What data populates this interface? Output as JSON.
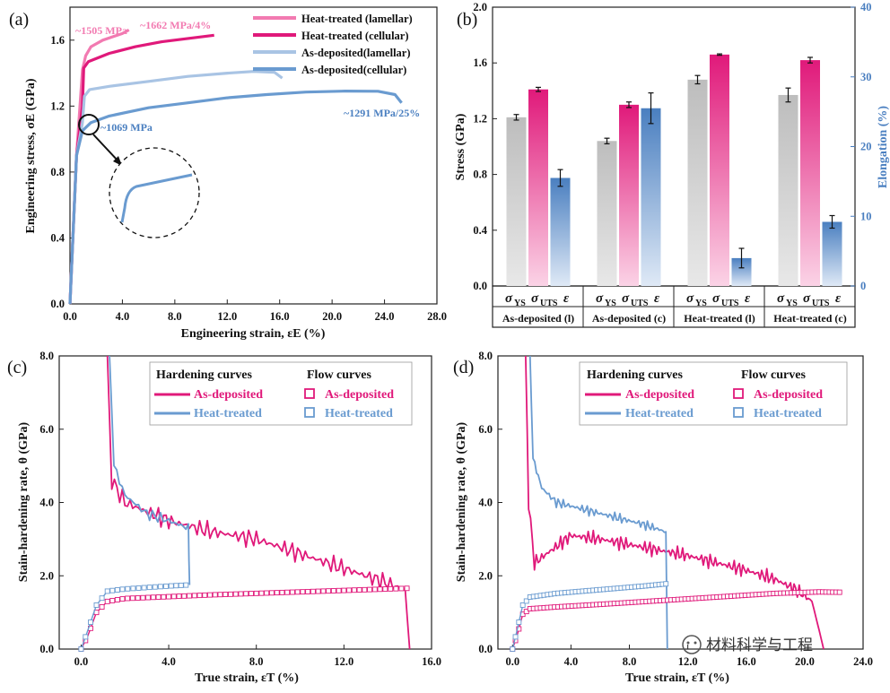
{
  "chart_data": [
    {
      "panel": "(a)",
      "type": "line",
      "xlabel": "Engineering strain, εE (%)",
      "ylabel": "Engineering stress, σE (GPa)",
      "xlim": [
        0,
        28
      ],
      "ylim": [
        0,
        1.8
      ],
      "xticks": [
        "0.0",
        "4.0",
        "8.0",
        "12.0",
        "16.0",
        "20.0",
        "24.0",
        "28.0"
      ],
      "yticks": [
        "0.0",
        "0.4",
        "0.8",
        "1.2",
        "1.6"
      ],
      "legend_position": "top-right",
      "series": [
        {
          "name": "Heat-treated (lamellar)",
          "color": "#f27ab1",
          "points": [
            [
              0,
              0
            ],
            [
              0.5,
              0.9
            ],
            [
              0.95,
              1.42
            ],
            [
              1.2,
              1.505
            ],
            [
              1.6,
              1.56
            ],
            [
              2.5,
              1.6
            ],
            [
              4.0,
              1.64
            ],
            [
              4.5,
              1.662
            ]
          ]
        },
        {
          "name": "Heat-treated (cellular)",
          "color": "#e0197a",
          "points": [
            [
              0,
              0
            ],
            [
              0.5,
              0.9
            ],
            [
              0.95,
              1.2
            ],
            [
              1.05,
              1.43
            ],
            [
              1.4,
              1.47
            ],
            [
              3,
              1.52
            ],
            [
              5,
              1.56
            ],
            [
              7,
              1.59
            ],
            [
              9,
              1.61
            ],
            [
              11,
              1.63
            ]
          ]
        },
        {
          "name": "As-deposited(lamellar)",
          "color": "#a9c4e4",
          "points": [
            [
              0,
              0
            ],
            [
              0.5,
              0.9
            ],
            [
              0.95,
              1.1
            ],
            [
              1.1,
              1.26
            ],
            [
              1.5,
              1.3
            ],
            [
              3,
              1.32
            ],
            [
              6,
              1.35
            ],
            [
              9,
              1.38
            ],
            [
              12,
              1.4
            ],
            [
              14,
              1.41
            ],
            [
              15.6,
              1.405
            ],
            [
              16.2,
              1.37
            ]
          ]
        },
        {
          "name": "As-deposited(cellular)",
          "color": "#6a9bd0",
          "points": [
            [
              0,
              0
            ],
            [
              0.5,
              0.9
            ],
            [
              0.95,
              1.05
            ],
            [
              1.2,
              1.069
            ],
            [
              1.6,
              1.1
            ],
            [
              3,
              1.14
            ],
            [
              6,
              1.19
            ],
            [
              9,
              1.22
            ],
            [
              12,
              1.25
            ],
            [
              15,
              1.27
            ],
            [
              18,
              1.285
            ],
            [
              21,
              1.291
            ],
            [
              23.5,
              1.29
            ],
            [
              24.8,
              1.27
            ],
            [
              25.3,
              1.22
            ]
          ]
        }
      ],
      "annotations": [
        "~1505 MPa",
        "~1662 MPa/4%",
        "~1069 MPa",
        "~1291 MPa/25%"
      ]
    },
    {
      "panel": "(b)",
      "type": "bar",
      "ylabel": "Stress (GPa)",
      "y2label": "Elongation (%)",
      "ylim": [
        0,
        2.0
      ],
      "y2lim": [
        0,
        40
      ],
      "yticks": [
        "0.0",
        "0.4",
        "0.8",
        "1.2",
        "1.6",
        "2.0"
      ],
      "y2ticks": [
        "0",
        "10",
        "20",
        "30",
        "40"
      ],
      "categories": [
        "As-deposited (l)",
        "As-deposited (c)",
        "Heat-treated (l)",
        "Heat-treated (c)"
      ],
      "series": [
        {
          "name": "σYS",
          "axis": "left",
          "color": "#c8c8c8",
          "values": [
            1.21,
            1.04,
            1.48,
            1.37
          ],
          "errors": [
            0.02,
            0.02,
            0.03,
            0.05
          ]
        },
        {
          "name": "σUTS",
          "axis": "left",
          "color": "#e0197a",
          "values": [
            1.41,
            1.3,
            1.66,
            1.62
          ],
          "errors": [
            0.015,
            0.02,
            0.005,
            0.02
          ]
        },
        {
          "name": "ε",
          "axis": "right",
          "color": "#4a7fc0",
          "values": [
            15.5,
            25.5,
            4,
            9.2
          ],
          "errors": [
            1.2,
            2.2,
            1.4,
            0.9
          ]
        }
      ],
      "symbol_labels": [
        "σ",
        "YS",
        "σ",
        "UTS",
        "ε"
      ]
    },
    {
      "panel": "(c)",
      "type": "line",
      "xlabel": "True strain, εT (%)",
      "ylabel": "Stain-hardening rate, θ (GPa)",
      "xlim": [
        -1,
        16
      ],
      "ylim": [
        0,
        8
      ],
      "xticks": [
        "0.0",
        "4.0",
        "8.0",
        "12.0",
        "16.0"
      ],
      "yticks": [
        "0.0",
        "2.0",
        "4.0",
        "6.0",
        "8.0"
      ],
      "legend": {
        "hardening_title": "Hardening curves",
        "flow_title": "Flow curves",
        "as_deposited": "As-deposited",
        "heat_treated": "Heat-treated"
      },
      "series": [
        {
          "name": "Hardening As-deposited",
          "color": "#e0197a",
          "noise": 0.28,
          "points": [
            [
              1.2,
              8
            ],
            [
              1.4,
              4.6
            ],
            [
              2,
              4.0
            ],
            [
              4,
              3.5
            ],
            [
              6,
              3.2
            ],
            [
              8,
              3.0
            ],
            [
              10,
              2.6
            ],
            [
              12,
              2.2
            ],
            [
              14,
              1.8
            ],
            [
              14.8,
              1.6
            ],
            [
              15,
              0
            ]
          ]
        },
        {
          "name": "Hardening Heat-treated",
          "color": "#6a9bd0",
          "noise": 0.18,
          "points": [
            [
              1.3,
              8
            ],
            [
              1.5,
              5.0
            ],
            [
              2,
              4.2
            ],
            [
              3,
              3.7
            ],
            [
              4,
              3.5
            ],
            [
              4.9,
              3.3
            ],
            [
              4.95,
              1.75
            ]
          ]
        },
        {
          "name": "Flow As-deposited",
          "color": "#e0197a",
          "marker": "square-open",
          "points": [
            [
              0,
              0
            ],
            [
              0.3,
              0.35
            ],
            [
              0.7,
              1.0
            ],
            [
              1.2,
              1.3
            ],
            [
              2,
              1.38
            ],
            [
              4,
              1.43
            ],
            [
              6,
              1.48
            ],
            [
              8,
              1.52
            ],
            [
              10,
              1.56
            ],
            [
              12,
              1.6
            ],
            [
              14,
              1.64
            ],
            [
              15,
              1.66
            ]
          ]
        },
        {
          "name": "Flow Heat-treated",
          "color": "#6a9bd0",
          "marker": "square-open",
          "points": [
            [
              0,
              0
            ],
            [
              0.3,
              0.5
            ],
            [
              0.7,
              1.2
            ],
            [
              1.2,
              1.58
            ],
            [
              2,
              1.64
            ],
            [
              3,
              1.68
            ],
            [
              4,
              1.72
            ],
            [
              4.9,
              1.75
            ]
          ]
        }
      ]
    },
    {
      "panel": "(d)",
      "type": "line",
      "xlabel": "True strain, εT (%)",
      "ylabel": "Stain-hardening rate, θ (GPa)",
      "xlim": [
        -1,
        24
      ],
      "ylim": [
        0,
        8
      ],
      "xticks": [
        "0.0",
        "4.0",
        "8.0",
        "12.0",
        "16.0",
        "20.0",
        "24.0"
      ],
      "yticks": [
        "0.0",
        "2.0",
        "4.0",
        "6.0",
        "8.0"
      ],
      "legend": {
        "hardening_title": "Hardening curves",
        "flow_title": "Flow curves",
        "as_deposited": "As-deposited",
        "heat_treated": "Heat-treated"
      },
      "series": [
        {
          "name": "Hardening As-deposited",
          "color": "#e0197a",
          "noise": 0.22,
          "points": [
            [
              0.9,
              8
            ],
            [
              1.1,
              4.0
            ],
            [
              1.5,
              2.35
            ],
            [
              2,
              2.5
            ],
            [
              4,
              3.1
            ],
            [
              6,
              3.0
            ],
            [
              8,
              2.85
            ],
            [
              10,
              2.7
            ],
            [
              12,
              2.55
            ],
            [
              14,
              2.35
            ],
            [
              16,
              2.15
            ],
            [
              18,
              1.9
            ],
            [
              19.5,
              1.6
            ],
            [
              20.5,
              1.3
            ],
            [
              21,
              0.5
            ],
            [
              21.3,
              0
            ]
          ]
        },
        {
          "name": "Hardening Heat-treated",
          "color": "#6a9bd0",
          "noise": 0.15,
          "points": [
            [
              1.2,
              8
            ],
            [
              1.4,
              5.2
            ],
            [
              2,
              4.4
            ],
            [
              3,
              4.0
            ],
            [
              5,
              3.8
            ],
            [
              7,
              3.6
            ],
            [
              9,
              3.4
            ],
            [
              10.5,
              3.2
            ],
            [
              10.6,
              0
            ]
          ]
        },
        {
          "name": "Flow As-deposited",
          "color": "#e0197a",
          "marker": "square-open",
          "points": [
            [
              0,
              0
            ],
            [
              0.3,
              0.35
            ],
            [
              0.7,
              0.95
            ],
            [
              1.2,
              1.1
            ],
            [
              3,
              1.15
            ],
            [
              6,
              1.22
            ],
            [
              10,
              1.32
            ],
            [
              14,
              1.42
            ],
            [
              18,
              1.52
            ],
            [
              21,
              1.56
            ],
            [
              22.5,
              1.55
            ]
          ]
        },
        {
          "name": "Flow Heat-treated",
          "color": "#6a9bd0",
          "marker": "square-open",
          "points": [
            [
              0,
              0
            ],
            [
              0.3,
              0.5
            ],
            [
              0.7,
              1.2
            ],
            [
              1.2,
              1.42
            ],
            [
              3,
              1.52
            ],
            [
              6,
              1.62
            ],
            [
              9,
              1.72
            ],
            [
              10.5,
              1.78
            ]
          ]
        }
      ]
    }
  ],
  "watermark": "材料科学与工程"
}
